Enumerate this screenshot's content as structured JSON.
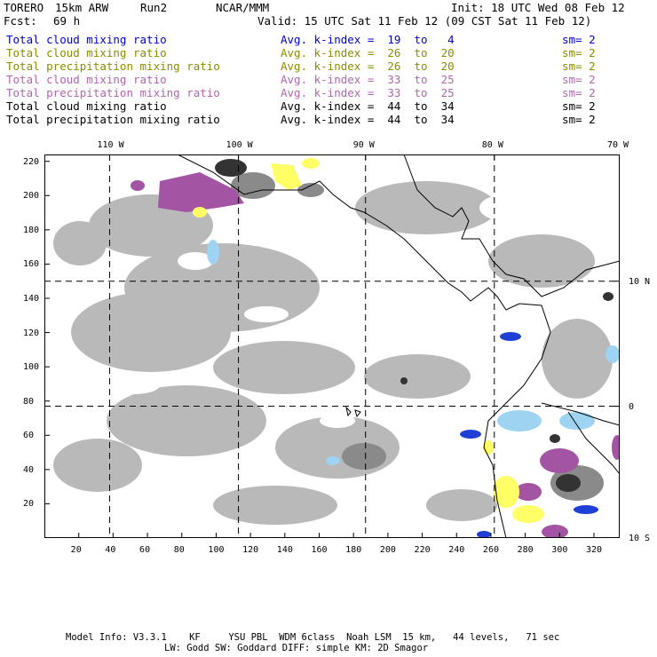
{
  "header": {
    "model": "TORERO",
    "resolution": "15km ARW",
    "run": "Run2",
    "org": "NCAR/MMM",
    "init": "Init: 18 UTC Wed 08 Feb 12",
    "fcst_label": "Fcst:",
    "fcst_value": "69 h",
    "valid": "Valid: 15 UTC Sat 11 Feb 12 (09 CST Sat 11 Feb 12)"
  },
  "legend": [
    {
      "field": "Total cloud mixing ratio",
      "kindex": "Avg. k-index =  19  to   4",
      "sm": "sm= 2",
      "color": "#0000cc"
    },
    {
      "field": "Total cloud mixing ratio",
      "kindex": "Avg. k-index =  26  to  20",
      "sm": "sm= 2",
      "color": "#8c8c00"
    },
    {
      "field": "Total precipitation mixing ratio",
      "kindex": "Avg. k-index =  26  to  20",
      "sm": "sm= 2",
      "color": "#8c8c00"
    },
    {
      "field": "Total cloud mixing ratio",
      "kindex": "Avg. k-index =  33  to  25",
      "sm": "sm= 2",
      "color": "#b066b0"
    },
    {
      "field": "Total precipitation mixing ratio",
      "kindex": "Avg. k-index =  33  to  25",
      "sm": "sm= 2",
      "color": "#b066b0"
    },
    {
      "field": "Total cloud mixing ratio",
      "kindex": "Avg. k-index =  44  to  34",
      "sm": "sm= 2",
      "color": "#000000"
    },
    {
      "field": "Total precipitation mixing ratio",
      "kindex": "Avg. k-index =  44  to  34",
      "sm": "sm= 2",
      "color": "#000000"
    }
  ],
  "map": {
    "x_range": [
      0,
      335
    ],
    "y_range": [
      0,
      224
    ],
    "x_ticks": [
      20,
      40,
      60,
      80,
      100,
      120,
      140,
      160,
      180,
      200,
      220,
      240,
      260,
      280,
      300,
      320
    ],
    "y_ticks": [
      20,
      40,
      60,
      80,
      100,
      120,
      140,
      160,
      180,
      200,
      220
    ],
    "lon_labels": [
      {
        "label": "110 W",
        "x": 38
      },
      {
        "label": "100 W",
        "x": 113
      },
      {
        "label": "90 W",
        "x": 187
      },
      {
        "label": "80 W",
        "x": 262
      },
      {
        "label": "70 W",
        "x": 335
      }
    ],
    "lat_labels": [
      {
        "label": "10 N",
        "y": 150
      },
      {
        "label": "0",
        "y": 77
      },
      {
        "label": "10 S",
        "y": 0
      }
    ],
    "grid_lon_x": [
      38,
      113,
      187,
      262
    ],
    "grid_lat_y": [
      150,
      77
    ]
  },
  "footer": {
    "line1": "Model Info: V3.3.1    KF     YSU PBL  WDM 6class  Noah LSM  15 km,   44 levels,   71 sec",
    "line2": "LW: Godd SW: Goddard DIFF: simple KM: 2D Smagor"
  }
}
